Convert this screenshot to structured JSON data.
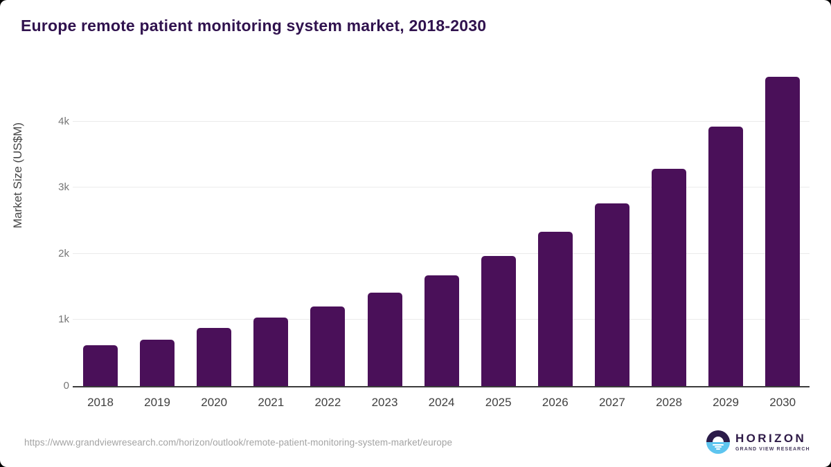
{
  "page": {
    "title": "Europe remote patient monitoring system market, 2018-2030"
  },
  "chart_data": {
    "type": "bar",
    "title": "Europe remote patient monitoring system market, 2018-2030",
    "series_name": "Market Size",
    "categories": [
      "2018",
      "2019",
      "2020",
      "2021",
      "2022",
      "2023",
      "2024",
      "2025",
      "2026",
      "2027",
      "2028",
      "2029",
      "2030"
    ],
    "values": [
      615,
      705,
      875,
      1035,
      1205,
      1415,
      1670,
      1970,
      2335,
      2765,
      3285,
      3925,
      4680
    ],
    "xlabel": "",
    "ylabel": "Market Size (US$M)",
    "ylim": [
      0,
      4690
    ],
    "yticks": [
      {
        "label": "0",
        "value": 0
      },
      {
        "label": "1k",
        "value": 1000
      },
      {
        "label": "2k",
        "value": 2000
      },
      {
        "label": "3k",
        "value": 3000
      },
      {
        "label": "4k",
        "value": 4000
      }
    ],
    "grid": true,
    "legend": false,
    "bar_color": "#4a1059"
  },
  "footer": {
    "source_url": "https://www.grandviewresearch.com/horizon/outlook/remote-patient-monitoring-system-market/europe",
    "logo": {
      "brand": "HORIZON",
      "tagline": "GRAND VIEW RESEARCH"
    }
  },
  "colors": {
    "bar": "#4a1059",
    "title_text": "#30124e",
    "logo_dark": "#2b1b49",
    "logo_blue": "#5ec5ef",
    "gridline": "#ebebeb",
    "axis_line": "#3b3b3b"
  }
}
